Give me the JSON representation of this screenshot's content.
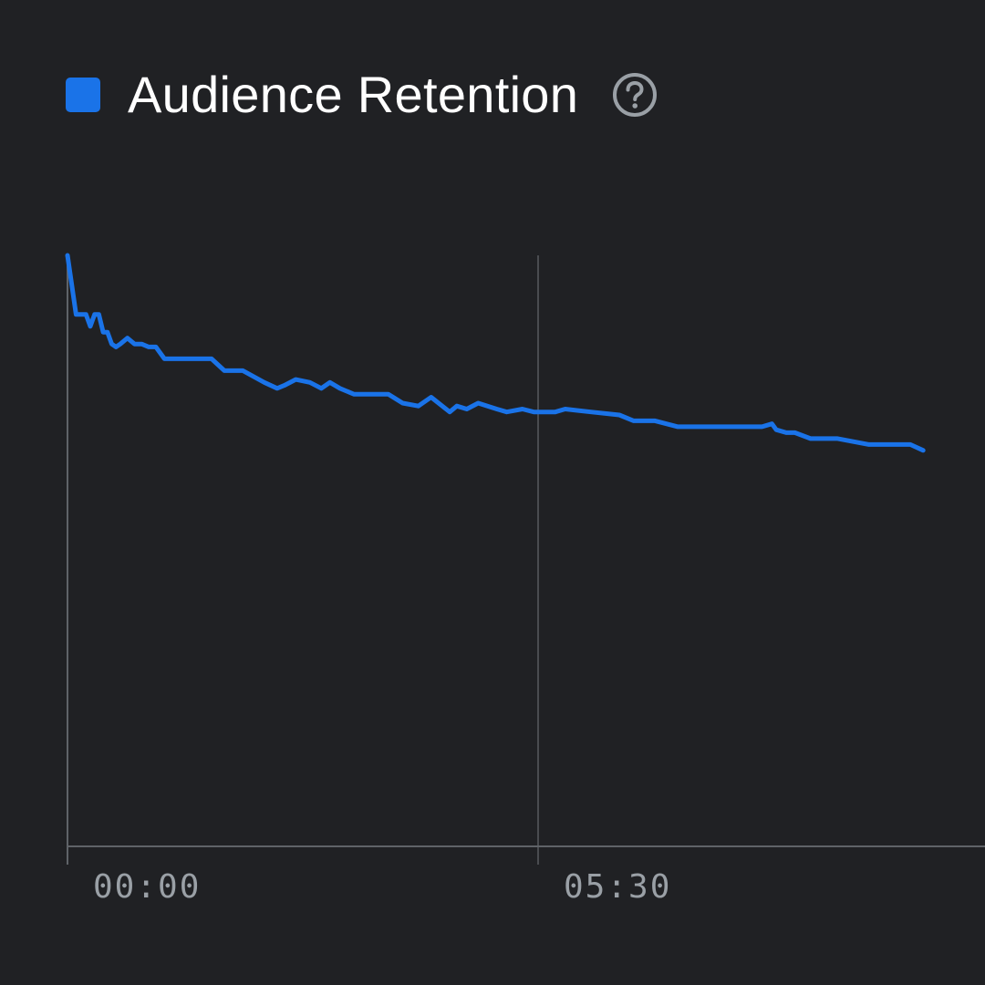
{
  "colors": {
    "background": "#202124",
    "series": "#1a73e8",
    "axis": "#5f6368",
    "gridline": "#4a4c50",
    "tick_text": "#9aa0a6",
    "help_icon": "#9aa0a6"
  },
  "header": {
    "title": "Audience Retention",
    "help_icon": "help-circle-icon"
  },
  "chart_data": {
    "type": "line",
    "title": "Audience Retention",
    "xlabel": "",
    "ylabel": "",
    "x_unit": "seconds",
    "xlim": [
      0,
      600
    ],
    "ylim": [
      0,
      100
    ],
    "x_ticks": [
      {
        "value": 0,
        "label": "00:00"
      },
      {
        "value": 330,
        "label": "05:30"
      }
    ],
    "grid": "vertical at ticks",
    "legend": "top-left",
    "series": [
      {
        "x": [
          0,
          6,
          13,
          16,
          19,
          22,
          25,
          28,
          31,
          34,
          37,
          42,
          47,
          52,
          57,
          62,
          68,
          73,
          79,
          91,
          101,
          110,
          115,
          123,
          138,
          147,
          152,
          160,
          170,
          178,
          184,
          191,
          201,
          211,
          217,
          225,
          235,
          246,
          255,
          268,
          273,
          280,
          288,
          301,
          308,
          319,
          327,
          330,
          342,
          349,
          367,
          387,
          397,
          412,
          428,
          440,
          454,
          463,
          487,
          494,
          497,
          504,
          510,
          521,
          540,
          562,
          577,
          591,
          600
        ],
        "values": [
          100,
          90,
          90,
          88,
          90,
          90,
          87,
          87,
          85,
          84.5,
          85,
          86,
          85,
          85,
          84.5,
          84.5,
          82.5,
          82.5,
          82.5,
          82.5,
          82.5,
          80.5,
          80.5,
          80.5,
          78.5,
          77.5,
          78,
          79,
          78.5,
          77.5,
          78.5,
          77.5,
          76.5,
          76.5,
          76.5,
          76.5,
          75,
          74.5,
          76,
          73.5,
          74.5,
          74,
          75,
          74,
          73.5,
          74,
          73.5,
          73.5,
          73.5,
          74,
          73.5,
          73,
          72,
          72,
          71,
          71,
          71,
          71,
          71,
          71.5,
          70.5,
          70,
          70,
          69,
          69,
          68,
          68,
          68,
          67
        ]
      }
    ]
  }
}
